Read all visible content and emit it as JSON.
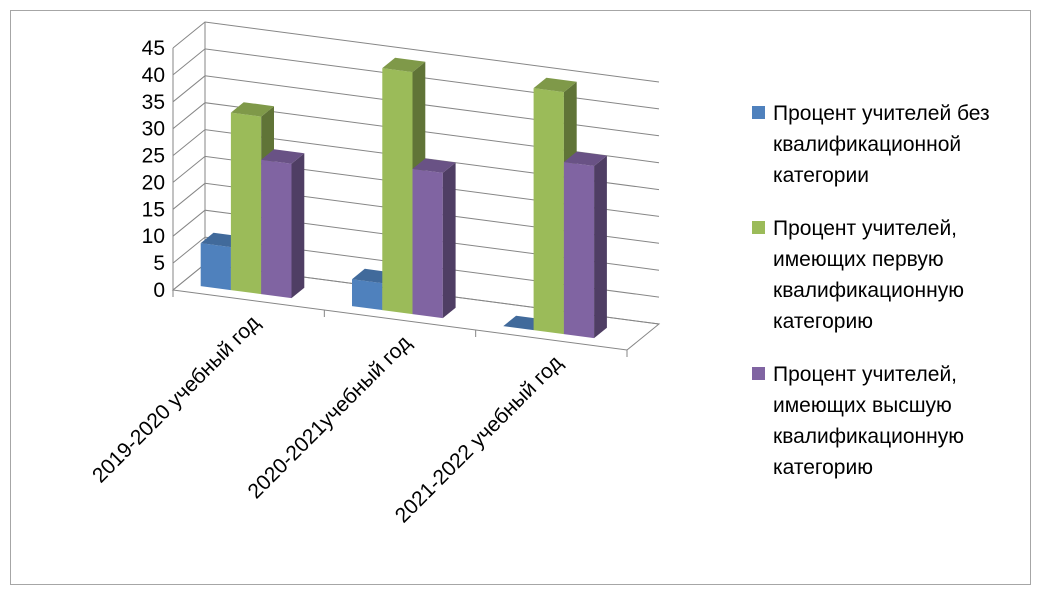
{
  "chart_data": {
    "type": "bar",
    "categories": [
      "2019-2020 учебный год",
      "2020-2021учебный год",
      "2021-2022 учебный год"
    ],
    "series": [
      {
        "name": "Процент учителей без квалификационной категории",
        "values": [
          8,
          5,
          0
        ],
        "color": "#4f81bd"
      },
      {
        "name": "Процент учителей, имеющих первую квалификационную категорию",
        "values": [
          33,
          45,
          45
        ],
        "color": "#9bbb59"
      },
      {
        "name": "Процент учителей, имеющих высшую квалификационную категорию",
        "values": [
          25,
          27,
          32
        ],
        "color": "#8064a2"
      }
    ],
    "yticks": [
      "0",
      "5",
      "10",
      "15",
      "20",
      "25",
      "30",
      "35",
      "40",
      "45"
    ],
    "ylim": [
      0,
      45
    ],
    "grid": true,
    "legend_position": "right",
    "style": "3d-clustered-column"
  }
}
